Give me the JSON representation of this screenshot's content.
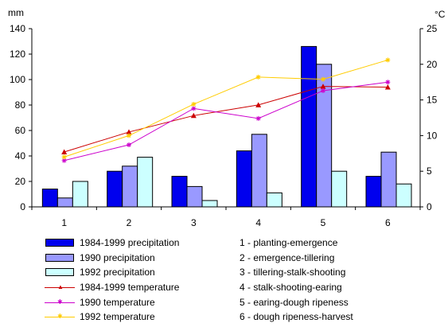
{
  "chart_data": {
    "type": "bar+line",
    "left_unit": "mm",
    "right_unit": "°C",
    "categories": [
      "1",
      "2",
      "3",
      "4",
      "5",
      "6"
    ],
    "left_ylim": [
      0,
      140
    ],
    "left_ticks": [
      "0",
      "20",
      "40",
      "60",
      "80",
      "100",
      "120",
      "140"
    ],
    "right_ylim": [
      0,
      25
    ],
    "right_ticks": [
      "0",
      "5",
      "10",
      "15",
      "20",
      "25"
    ],
    "grid": false,
    "bar_series": [
      {
        "name": "1984-1999 precipitation",
        "color": "#0000ee",
        "values": [
          14,
          28,
          24,
          44,
          126,
          24
        ]
      },
      {
        "name": "1990 precipitation",
        "color": "#9999ff",
        "values": [
          7,
          32,
          16,
          57,
          112,
          43
        ]
      },
      {
        "name": "1992 precipitation",
        "color": "#ccffff",
        "values": [
          20,
          39,
          5,
          11,
          28,
          18
        ]
      }
    ],
    "line_series": [
      {
        "name": "1984-1999 temperature",
        "color": "#cc0000",
        "marker": "▲",
        "values": [
          7.7,
          10.5,
          12.8,
          14.3,
          16.9,
          16.8
        ]
      },
      {
        "name": "1990 temperature",
        "color": "#cc00cc",
        "marker": "✱",
        "values": [
          6.5,
          8.7,
          13.8,
          12.4,
          16.3,
          17.5
        ]
      },
      {
        "name": "1992 temperature",
        "color": "#ffcc00",
        "marker": "✱",
        "values": [
          7.0,
          10.0,
          14.4,
          18.2,
          17.9,
          20.6
        ]
      }
    ],
    "stages": [
      "1 - planting-emergence",
      "2 - emergence-tillering",
      "3 - tillering-stalk-shooting",
      "4 - stalk-shooting-earing",
      "5 - earing-dough ripeness",
      "6 - dough ripeness-harvest"
    ]
  }
}
